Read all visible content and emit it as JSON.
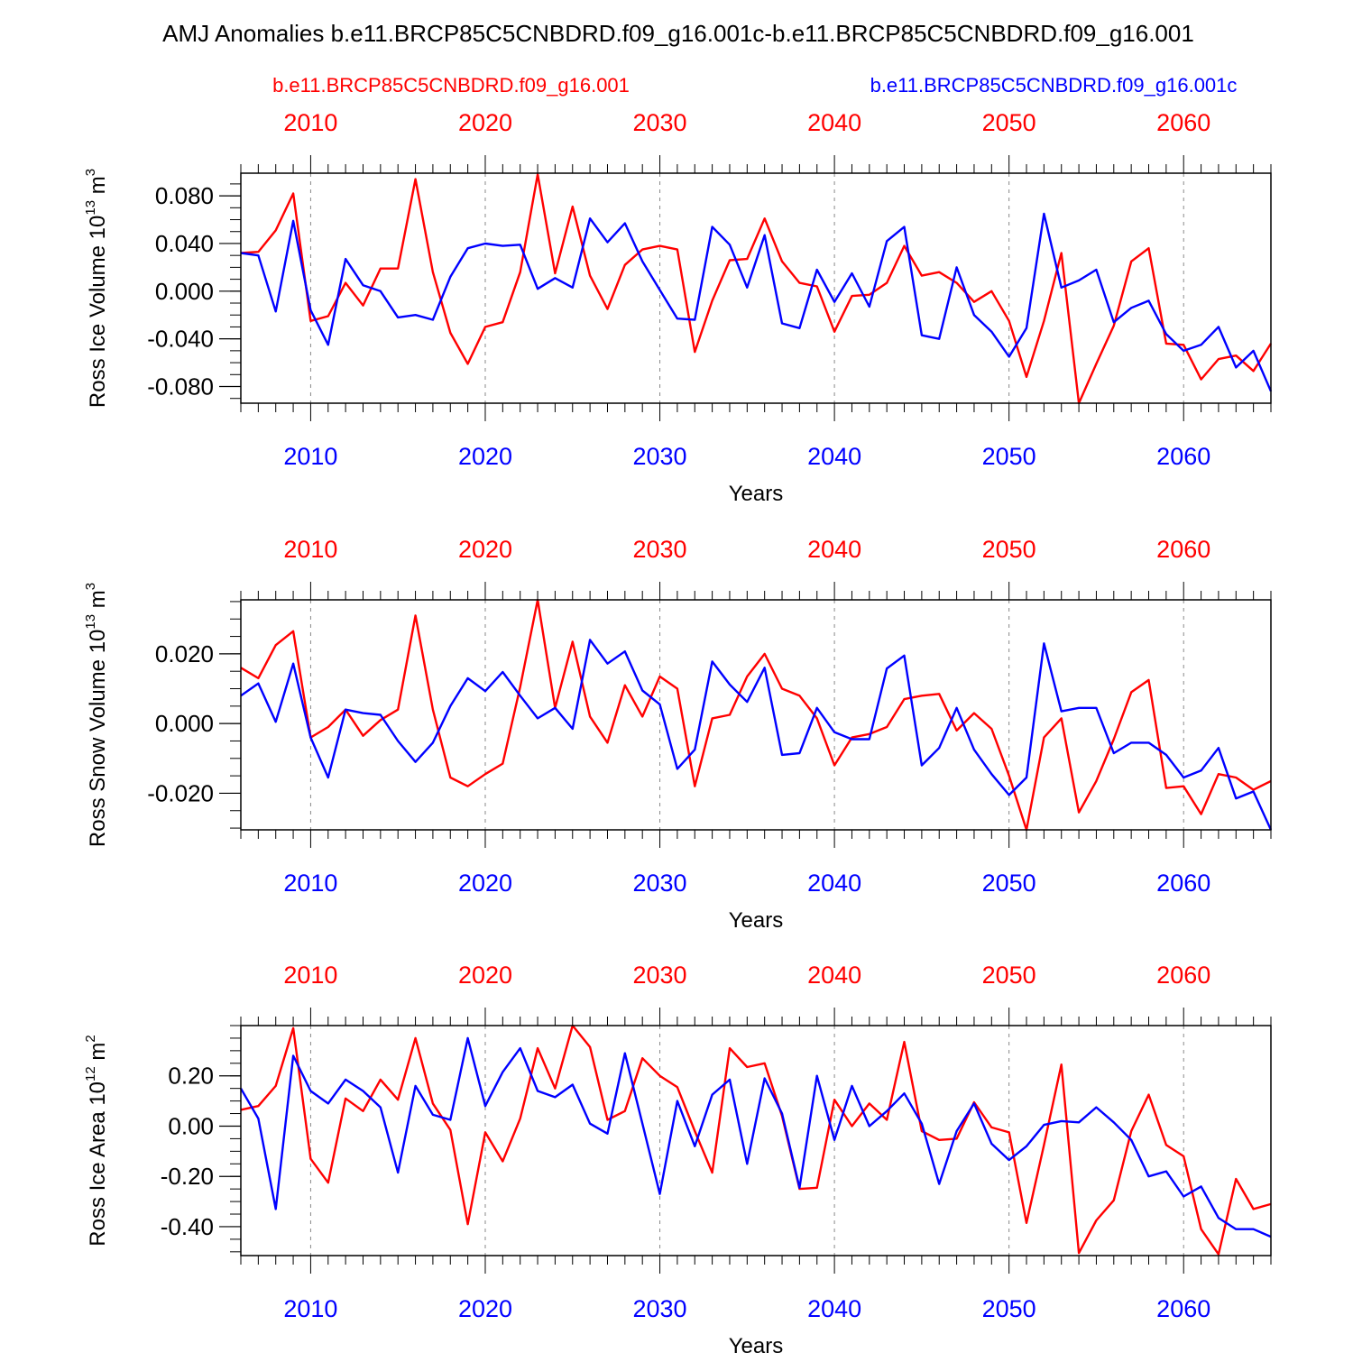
{
  "figure": {
    "title": "AMJ Anomalies b.e11.BRCP85C5CNBDRD.f09_g16.001c-b.e11.BRCP85C5CNBDRD.f09_g16.001",
    "legend_red": "b.e11.BRCP85C5CNBDRD.f09_g16.001",
    "legend_blue": "b.e11.BRCP85C5CNBDRD.f09_g16.001c"
  },
  "colors": {
    "red": "#ff0000",
    "blue": "#0000ff",
    "axis": "#000000",
    "grid": "#888888"
  },
  "chart_data": [
    {
      "type": "line",
      "xlabel": "Years",
      "ylabel": "Ross Ice Volume 10",
      "ylabel_exp": "13",
      "ylabel_unit": " m",
      "ylabel_unit_exp": "3",
      "xlim": [
        2006,
        2065
      ],
      "ylim": [
        -0.094,
        0.099
      ],
      "yticks": [
        -0.08,
        -0.04,
        0.0,
        0.04,
        0.08
      ],
      "ytick_labels": [
        "-0.080",
        "-0.040",
        "0.000",
        "0.040",
        "0.080"
      ],
      "yminor_step": 0.01,
      "xticks": [
        2010,
        2020,
        2030,
        2040,
        2050,
        2060
      ],
      "xtick_labels": [
        "2010",
        "2020",
        "2030",
        "2040",
        "2050",
        "2060"
      ],
      "x": [
        2006,
        2007,
        2008,
        2009,
        2010,
        2011,
        2012,
        2013,
        2014,
        2015,
        2016,
        2017,
        2018,
        2019,
        2020,
        2021,
        2022,
        2023,
        2024,
        2025,
        2026,
        2027,
        2028,
        2029,
        2030,
        2031,
        2032,
        2033,
        2034,
        2035,
        2036,
        2037,
        2038,
        2039,
        2040,
        2041,
        2042,
        2043,
        2044,
        2045,
        2046,
        2047,
        2048,
        2049,
        2050,
        2051,
        2052,
        2053,
        2054,
        2055,
        2056,
        2057,
        2058,
        2059,
        2060,
        2061,
        2062,
        2063,
        2064,
        2065
      ],
      "series": [
        {
          "name": "b.e11.BRCP85C5CNBDRD.f09_g16.001",
          "color": "red",
          "values": [
            0.032,
            0.033,
            0.051,
            0.082,
            -0.025,
            -0.021,
            0.007,
            -0.012,
            0.019,
            0.019,
            0.094,
            0.016,
            -0.035,
            -0.061,
            -0.03,
            -0.026,
            0.016,
            0.098,
            0.015,
            0.071,
            0.013,
            -0.015,
            0.022,
            0.035,
            0.038,
            0.035,
            -0.051,
            -0.008,
            0.026,
            0.027,
            0.061,
            0.025,
            0.007,
            0.004,
            -0.034,
            -0.004,
            -0.003,
            0.007,
            0.038,
            0.013,
            0.016,
            0.007,
            -0.009,
            0.0,
            -0.025,
            -0.072,
            -0.025,
            0.032,
            -0.094,
            -0.061,
            -0.029,
            0.025,
            0.036,
            -0.044,
            -0.045,
            -0.074,
            -0.057,
            -0.054,
            -0.067,
            -0.044
          ]
        },
        {
          "name": "b.e11.BRCP85C5CNBDRD.f09_g16.001c",
          "color": "blue",
          "values": [
            0.032,
            0.03,
            -0.017,
            0.059,
            -0.016,
            -0.045,
            0.027,
            0.005,
            0.0,
            -0.022,
            -0.02,
            -0.024,
            0.012,
            0.036,
            0.04,
            0.038,
            0.039,
            0.002,
            0.011,
            0.003,
            0.061,
            0.041,
            0.057,
            0.025,
            0.001,
            -0.023,
            -0.024,
            0.054,
            0.039,
            0.003,
            0.047,
            -0.027,
            -0.031,
            0.018,
            -0.009,
            0.015,
            -0.013,
            0.042,
            0.054,
            -0.037,
            -0.04,
            0.02,
            -0.02,
            -0.034,
            -0.055,
            -0.031,
            0.065,
            0.003,
            0.009,
            0.018,
            -0.026,
            -0.014,
            -0.008,
            -0.036,
            -0.05,
            -0.045,
            -0.03,
            -0.064,
            -0.05,
            -0.084
          ]
        }
      ]
    },
    {
      "type": "line",
      "xlabel": "Years",
      "ylabel": "Ross Snow Volume 10",
      "ylabel_exp": "13",
      "ylabel_unit": " m",
      "ylabel_unit_exp": "3",
      "xlim": [
        2006,
        2065
      ],
      "ylim": [
        -0.0305,
        0.0355
      ],
      "yticks": [
        -0.02,
        0.0,
        0.02
      ],
      "ytick_labels": [
        "-0.020",
        "0.000",
        "0.020"
      ],
      "yminor_step": 0.005,
      "xticks": [
        2010,
        2020,
        2030,
        2040,
        2050,
        2060
      ],
      "xtick_labels": [
        "2010",
        "2020",
        "2030",
        "2040",
        "2050",
        "2060"
      ],
      "x": [
        2006,
        2007,
        2008,
        2009,
        2010,
        2011,
        2012,
        2013,
        2014,
        2015,
        2016,
        2017,
        2018,
        2019,
        2020,
        2021,
        2022,
        2023,
        2024,
        2025,
        2026,
        2027,
        2028,
        2029,
        2030,
        2031,
        2032,
        2033,
        2034,
        2035,
        2036,
        2037,
        2038,
        2039,
        2040,
        2041,
        2042,
        2043,
        2044,
        2045,
        2046,
        2047,
        2048,
        2049,
        2050,
        2051,
        2052,
        2053,
        2054,
        2055,
        2056,
        2057,
        2058,
        2059,
        2060,
        2061,
        2062,
        2063,
        2064,
        2065
      ],
      "series": [
        {
          "name": "b.e11.BRCP85C5CNBDRD.f09_g16.001",
          "color": "red",
          "values": [
            0.016,
            0.013,
            0.0225,
            0.0265,
            -0.004,
            -0.001,
            0.004,
            -0.0035,
            0.001,
            0.004,
            0.031,
            0.004,
            -0.0155,
            -0.018,
            -0.0145,
            -0.0115,
            0.0105,
            0.0355,
            0.0045,
            0.0235,
            0.002,
            -0.0055,
            0.011,
            0.002,
            0.0135,
            0.01,
            -0.018,
            0.0015,
            0.0025,
            0.0135,
            0.02,
            0.01,
            0.008,
            0.0015,
            -0.012,
            -0.004,
            -0.003,
            -0.001,
            0.007,
            0.008,
            0.0085,
            -0.002,
            0.003,
            -0.0015,
            -0.015,
            -0.0305,
            -0.004,
            0.0015,
            -0.0255,
            -0.0165,
            -0.0045,
            0.009,
            0.0125,
            -0.0185,
            -0.018,
            -0.026,
            -0.0145,
            -0.0155,
            -0.019,
            -0.0165
          ]
        },
        {
          "name": "b.e11.BRCP85C5CNBDRD.f09_g16.001c",
          "color": "blue",
          "values": [
            0.008,
            0.0115,
            0.0005,
            0.0172,
            -0.004,
            -0.0155,
            0.004,
            0.003,
            0.0025,
            -0.005,
            -0.011,
            -0.0055,
            0.005,
            0.013,
            0.0093,
            0.0148,
            0.008,
            0.0015,
            0.0045,
            -0.0015,
            0.024,
            0.0172,
            0.0207,
            0.0095,
            0.0055,
            -0.013,
            -0.0075,
            0.0178,
            0.0112,
            0.0062,
            0.016,
            -0.009,
            -0.0085,
            0.0045,
            -0.0025,
            -0.0045,
            -0.0045,
            0.0158,
            0.0195,
            -0.012,
            -0.007,
            0.0045,
            -0.0075,
            -0.0145,
            -0.0205,
            -0.0155,
            0.023,
            0.0035,
            0.0045,
            0.0045,
            -0.0085,
            -0.0055,
            -0.0055,
            -0.009,
            -0.0155,
            -0.0135,
            -0.007,
            -0.0215,
            -0.0195,
            -0.0305
          ]
        }
      ]
    },
    {
      "type": "line",
      "xlabel": "Years",
      "ylabel": "Ross Ice Area 10",
      "ylabel_exp": "12",
      "ylabel_unit": " m",
      "ylabel_unit_exp": "2",
      "xlim": [
        2006,
        2065
      ],
      "ylim": [
        -0.515,
        0.4
      ],
      "yticks": [
        -0.4,
        -0.2,
        0.0,
        0.2
      ],
      "ytick_labels": [
        "-0.40",
        "-0.20",
        "0.00",
        "0.20"
      ],
      "yminor_step": 0.05,
      "xticks": [
        2010,
        2020,
        2030,
        2040,
        2050,
        2060
      ],
      "xtick_labels": [
        "2010",
        "2020",
        "2030",
        "2040",
        "2050",
        "2060"
      ],
      "x": [
        2006,
        2007,
        2008,
        2009,
        2010,
        2011,
        2012,
        2013,
        2014,
        2015,
        2016,
        2017,
        2018,
        2019,
        2020,
        2021,
        2022,
        2023,
        2024,
        2025,
        2026,
        2027,
        2028,
        2029,
        2030,
        2031,
        2032,
        2033,
        2034,
        2035,
        2036,
        2037,
        2038,
        2039,
        2040,
        2041,
        2042,
        2043,
        2044,
        2045,
        2046,
        2047,
        2048,
        2049,
        2050,
        2051,
        2052,
        2053,
        2054,
        2055,
        2056,
        2057,
        2058,
        2059,
        2060,
        2061,
        2062,
        2063,
        2064,
        2065
      ],
      "series": [
        {
          "name": "b.e11.BRCP85C5CNBDRD.f09_g16.001",
          "color": "red",
          "values": [
            0.065,
            0.08,
            0.16,
            0.39,
            -0.13,
            -0.225,
            0.11,
            0.06,
            0.185,
            0.105,
            0.35,
            0.09,
            -0.015,
            -0.39,
            -0.025,
            -0.14,
            0.03,
            0.31,
            0.15,
            0.4,
            0.315,
            0.025,
            0.06,
            0.27,
            0.2,
            0.155,
            -0.02,
            -0.185,
            0.31,
            0.235,
            0.25,
            0.04,
            -0.25,
            -0.245,
            0.105,
            0.0,
            0.09,
            0.025,
            0.335,
            -0.02,
            -0.055,
            -0.05,
            0.095,
            -0.005,
            -0.025,
            -0.385,
            -0.075,
            0.245,
            -0.505,
            -0.375,
            -0.295,
            -0.02,
            0.125,
            -0.075,
            -0.12,
            -0.41,
            -0.51,
            -0.21,
            -0.33,
            -0.31
          ]
        },
        {
          "name": "b.e11.BRCP85C5CNBDRD.f09_g16.001c",
          "color": "blue",
          "values": [
            0.15,
            0.03,
            -0.33,
            0.28,
            0.14,
            0.09,
            0.185,
            0.14,
            0.075,
            -0.185,
            0.16,
            0.045,
            0.025,
            0.35,
            0.08,
            0.215,
            0.31,
            0.14,
            0.115,
            0.165,
            0.01,
            -0.03,
            0.29,
            0.01,
            -0.27,
            0.1,
            -0.08,
            0.125,
            0.185,
            -0.15,
            0.19,
            0.05,
            -0.245,
            0.2,
            -0.055,
            0.16,
            0.0,
            0.06,
            0.13,
            0.01,
            -0.23,
            -0.02,
            0.09,
            -0.07,
            -0.135,
            -0.08,
            0.005,
            0.02,
            0.015,
            0.075,
            0.015,
            -0.055,
            -0.2,
            -0.18,
            -0.28,
            -0.24,
            -0.365,
            -0.41,
            -0.41,
            -0.44
          ]
        }
      ]
    }
  ]
}
